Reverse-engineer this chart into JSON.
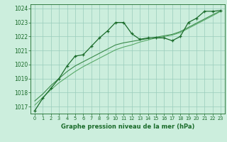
{
  "title": "Graphe pression niveau de la mer (hPa)",
  "bg_color": "#cceedd",
  "grid_color": "#99ccbb",
  "line_color_main": "#1a6b2a",
  "line_color_smooth1": "#3a8a4a",
  "line_color_smooth2": "#5aaa6a",
  "xlim": [
    -0.5,
    23.5
  ],
  "ylim": [
    1016.5,
    1024.3
  ],
  "yticks": [
    1017,
    1018,
    1019,
    1020,
    1021,
    1022,
    1023,
    1024
  ],
  "xticks": [
    0,
    1,
    2,
    3,
    4,
    5,
    6,
    7,
    8,
    9,
    10,
    11,
    12,
    13,
    14,
    15,
    16,
    17,
    18,
    19,
    20,
    21,
    22,
    23
  ],
  "series_main": [
    1016.7,
    1017.6,
    1018.3,
    1019.0,
    1019.9,
    1020.6,
    1020.7,
    1021.3,
    1021.9,
    1022.4,
    1023.0,
    1023.0,
    1022.2,
    1021.8,
    1021.9,
    1021.9,
    1021.9,
    1021.7,
    1022.0,
    1023.0,
    1023.3,
    1023.8,
    1023.8,
    1023.85
  ],
  "series_smooth1": [
    1017.4,
    1017.9,
    1018.5,
    1019.0,
    1019.5,
    1019.9,
    1020.2,
    1020.5,
    1020.8,
    1021.1,
    1021.4,
    1021.55,
    1021.65,
    1021.75,
    1021.85,
    1021.95,
    1022.05,
    1022.15,
    1022.35,
    1022.65,
    1022.95,
    1023.25,
    1023.55,
    1023.82
  ],
  "series_smooth2": [
    1017.1,
    1017.65,
    1018.2,
    1018.7,
    1019.1,
    1019.5,
    1019.85,
    1020.15,
    1020.45,
    1020.75,
    1021.05,
    1021.25,
    1021.4,
    1021.6,
    1021.75,
    1021.9,
    1022.0,
    1022.1,
    1022.28,
    1022.58,
    1022.88,
    1023.18,
    1023.48,
    1023.8
  ]
}
